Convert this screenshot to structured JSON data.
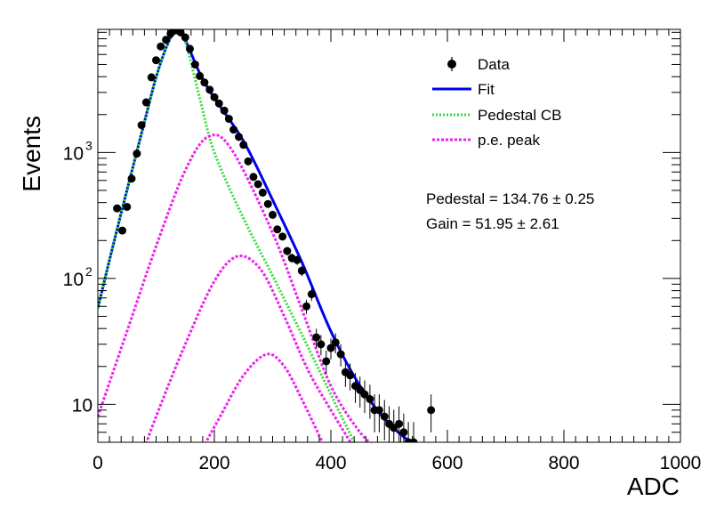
{
  "chart_data": {
    "type": "scatter",
    "xlabel": "ADC",
    "ylabel": "Events",
    "xlim": [
      0,
      1000
    ],
    "ylim": [
      5,
      9500
    ],
    "yscale": "log",
    "grid": false,
    "legend_position": "top-right",
    "x_ticks": [
      {
        "value": 0,
        "label": "0"
      },
      {
        "value": 200,
        "label": "200"
      },
      {
        "value": 400,
        "label": "400"
      },
      {
        "value": 600,
        "label": "600"
      },
      {
        "value": 800,
        "label": "800"
      },
      {
        "value": 1000,
        "label": "1000"
      }
    ],
    "y_ticks": [
      {
        "value": 10,
        "label": "10"
      },
      {
        "value": 100,
        "label": "10",
        "exp": "2"
      },
      {
        "value": 1000,
        "label": "10",
        "exp": "3"
      }
    ],
    "legend": [
      {
        "label": "Data",
        "style": "marker",
        "color": "#000000"
      },
      {
        "label": "Fit",
        "style": "solid",
        "color": "#0000ee"
      },
      {
        "label": "Pedestal CB",
        "style": "dotted",
        "color": "#33dd33"
      },
      {
        "label": "p.e. peak",
        "style": "dotted",
        "color": "#ee22ee"
      }
    ],
    "annotations": [
      "Pedestal = 134.76 ± 0.25",
      "Gain = 51.95 ± 2.61"
    ],
    "series": [
      {
        "name": "Data",
        "style": "points",
        "color": "#000000",
        "x": [
          33,
          42,
          50,
          58,
          67,
          75,
          83,
          92,
          100,
          108,
          117,
          125,
          133,
          142,
          150,
          158,
          167,
          175,
          183,
          192,
          200,
          208,
          217,
          225,
          233,
          242,
          250,
          258,
          267,
          275,
          283,
          292,
          300,
          308,
          317,
          325,
          333,
          342,
          350,
          358,
          367,
          375,
          383,
          392,
          400,
          408,
          417,
          425,
          433,
          442,
          450,
          458,
          467,
          475,
          483,
          492,
          500,
          508,
          517,
          525,
          533,
          542,
          572
        ],
        "y": [
          360,
          240,
          370,
          620,
          980,
          1650,
          2500,
          3950,
          5400,
          6950,
          7850,
          8800,
          9300,
          9000,
          8200,
          6650,
          5000,
          4050,
          3600,
          3150,
          2750,
          2450,
          2150,
          1850,
          1520,
          1330,
          1150,
          850,
          640,
          560,
          480,
          390,
          320,
          245,
          215,
          165,
          145,
          140,
          115,
          60,
          75,
          34,
          30,
          22,
          28,
          31,
          25,
          18,
          17,
          14,
          13,
          12,
          11,
          9,
          9,
          8,
          7,
          6.5,
          7,
          6,
          5,
          5,
          9
        ]
      },
      {
        "name": "Fit",
        "style": "solid",
        "color": "#0000ee",
        "x": [
          0,
          20,
          40,
          60,
          80,
          100,
          120,
          135,
          150,
          175,
          200,
          250,
          300,
          350,
          400,
          450,
          500,
          550
        ],
        "y": [
          58,
          140,
          330,
          760,
          1750,
          3950,
          7300,
          9300,
          7800,
          4250,
          2700,
          1230,
          420,
          135,
          38,
          14,
          7,
          4.5
        ]
      },
      {
        "name": "Pedestal CB",
        "style": "dotted",
        "color": "#33dd33",
        "x": [
          0,
          20,
          40,
          60,
          80,
          100,
          120,
          135,
          150,
          175,
          200,
          250,
          300,
          350,
          400,
          450
        ],
        "y": [
          58,
          140,
          330,
          760,
          1750,
          3950,
          7300,
          9300,
          7600,
          2700,
          1000,
          300,
          105,
          36,
          12,
          4
        ]
      },
      {
        "name": "p.e. peak 1",
        "style": "dotted",
        "color": "#ee22ee",
        "x": [
          0,
          50,
          100,
          150,
          190,
          230,
          300,
          350,
          400,
          450,
          480
        ],
        "y": [
          8,
          38,
          180,
          720,
          1340,
          1050,
          230,
          57,
          14,
          6,
          4.5
        ]
      },
      {
        "name": "p.e. peak 2",
        "style": "dotted",
        "color": "#ee22ee",
        "x": [
          80,
          100,
          150,
          200,
          240,
          280,
          320,
          360,
          400,
          440
        ],
        "y": [
          4.5,
          8,
          30,
          95,
          150,
          117,
          50,
          19,
          9,
          4.5
        ]
      },
      {
        "name": "p.e. peak 3",
        "style": "dotted",
        "color": "#ee22ee",
        "x": [
          180,
          210,
          250,
          290,
          320,
          350,
          390
        ],
        "y": [
          4.5,
          8,
          17,
          25,
          20,
          11,
          4.5
        ]
      }
    ]
  }
}
